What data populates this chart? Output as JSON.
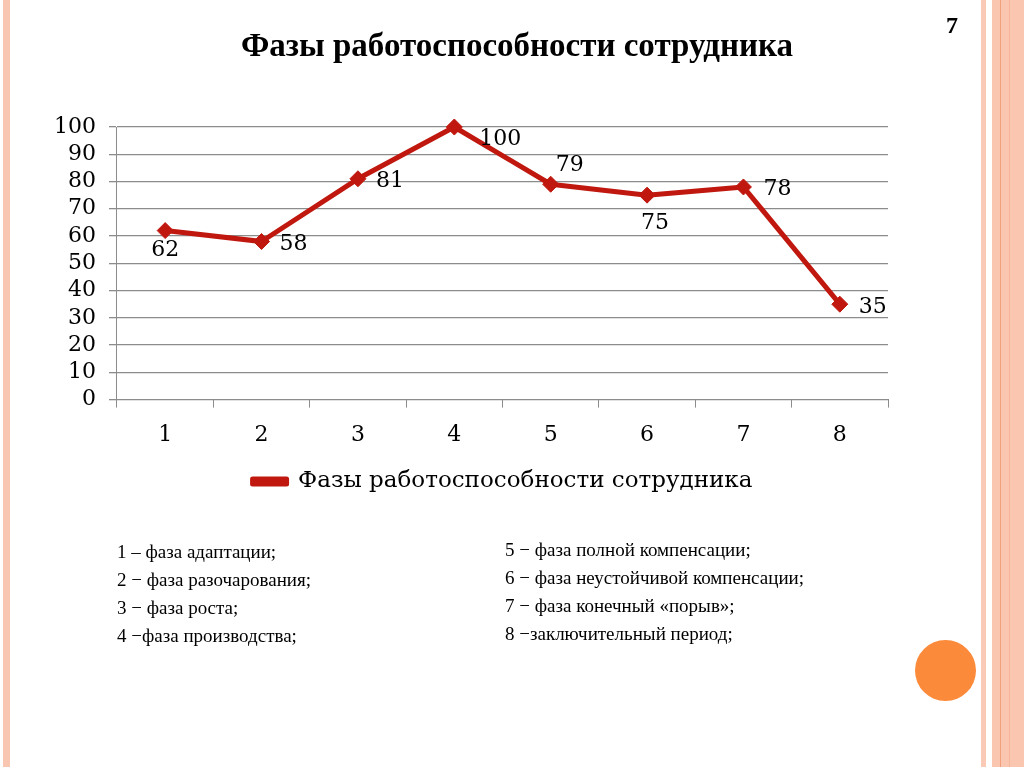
{
  "chart_data": {
    "type": "line",
    "title": "Фазы работоспособности сотрудника",
    "categories": [
      "1",
      "2",
      "3",
      "4",
      "5",
      "6",
      "7",
      "8"
    ],
    "series": [
      {
        "name": "Фазы работоспособности сотрудника",
        "color": "#c0180f",
        "values": [
          62,
          58,
          81,
          100,
          79,
          75,
          78,
          35
        ]
      }
    ],
    "ylim": [
      0,
      100
    ],
    "yticks": [
      0,
      10,
      20,
      30,
      40,
      50,
      60,
      70,
      80,
      90,
      100
    ],
    "grid": "y",
    "legend": "bottom",
    "marker": "diamond",
    "line_style": "solid",
    "data_labels": true,
    "annotations": [
      "7",
      "1 – фаза адаптации;",
      "2 − фаза разочарования;",
      "3 − фаза роста;",
      "4 −фаза производства;",
      "5 − фаза полной компенсации;",
      "6 − фаза неустойчивой компенсации;",
      "7 − фаза конечный «порыв»;",
      "8 −заключительный период;"
    ]
  }
}
